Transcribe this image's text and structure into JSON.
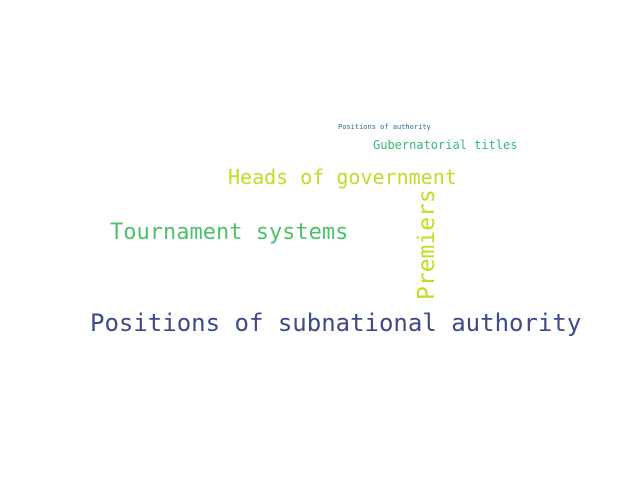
{
  "word_cloud": {
    "words": [
      {
        "text": "Positions of subnational authority",
        "color": "#3e4a89"
      },
      {
        "text": "Tournament systems",
        "color": "#4cc26c"
      },
      {
        "text": "Heads of government",
        "color": "#bddf26"
      },
      {
        "text": "Premiers",
        "color": "#bddf26",
        "orientation": "vertical"
      },
      {
        "text": "Gubernatorial titles",
        "color": "#35b779"
      },
      {
        "text": "Positions of authority",
        "color": "#31688e"
      }
    ]
  }
}
